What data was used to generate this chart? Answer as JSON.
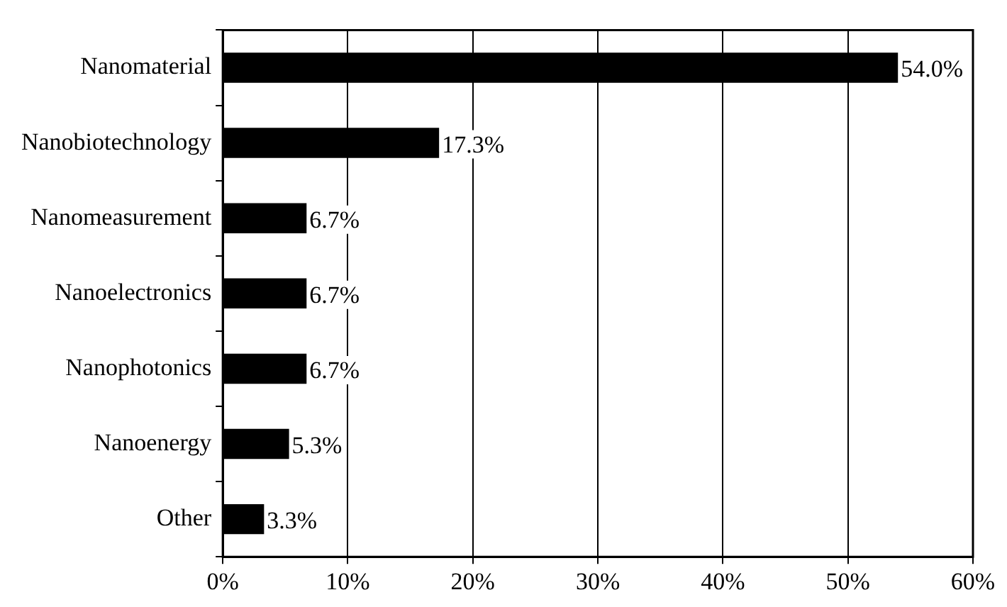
{
  "chart_data": {
    "type": "bar",
    "orientation": "horizontal",
    "categories": [
      "Nanomaterial",
      "Nanobiotechnology",
      "Nanomeasurement",
      "Nanoelectronics",
      "Nanophotonics",
      "Nanoenergy",
      "Other"
    ],
    "values": [
      54.0,
      17.3,
      6.7,
      6.7,
      6.7,
      5.3,
      3.3
    ],
    "value_labels": [
      "54.0%",
      "17.3%",
      "6.7%",
      "6.7%",
      "6.7%",
      "5.3%",
      "3.3%"
    ],
    "color": "#000000",
    "xlim": [
      0,
      60
    ],
    "xticks": [
      {
        "value": 0,
        "label": "0%"
      },
      {
        "value": 10,
        "label": "10%"
      },
      {
        "value": 20,
        "label": "20%"
      },
      {
        "value": 30,
        "label": "30%"
      },
      {
        "value": 40,
        "label": "40%"
      },
      {
        "value": 50,
        "label": "50%"
      },
      {
        "value": 60,
        "label": "60%"
      }
    ],
    "grid": "x",
    "legend": false
  }
}
